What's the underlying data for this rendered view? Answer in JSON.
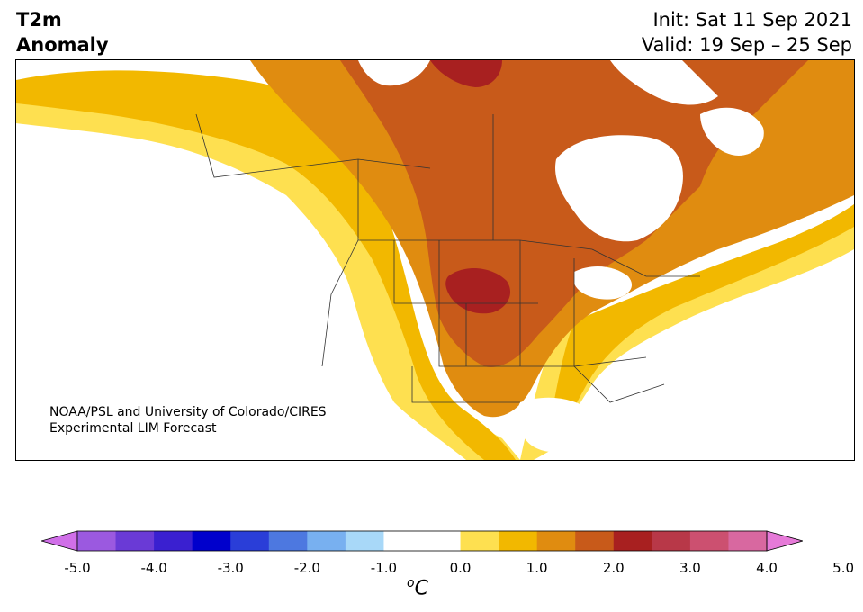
{
  "header": {
    "var_line1": "T2m",
    "var_line2": "Anomaly",
    "init": "Init: Sat 11 Sep 2021",
    "valid": "Valid: 19 Sep – 25 Sep"
  },
  "credit": {
    "line1": "NOAA/PSL and University of Colorado/CIRES",
    "line2": "Experimental LIM Forecast"
  },
  "colorbar": {
    "unit_base": "C",
    "unit_sup": "o",
    "ticks": [
      "-5.0",
      "-4.0",
      "-3.0",
      "-2.0",
      "-1.0",
      "0.0",
      "1.0",
      "2.0",
      "3.0",
      "4.0",
      "5.0"
    ],
    "colors": [
      "#d06fe8",
      "#9b59e0",
      "#6a3ad6",
      "#3a20d0",
      "#0000cc",
      "#2a3ed8",
      "#4d78e0",
      "#78b0f0",
      "#a8d8f8",
      "#ffffff",
      "#ffffff",
      "#fee050",
      "#f2b800",
      "#e08c10",
      "#c85a1a",
      "#a82020",
      "#b83848",
      "#cc5070",
      "#d868a0",
      "#e67ad8"
    ]
  },
  "map_colors": {
    "c1": "#fee050",
    "c15": "#f2b800",
    "c2": "#e08c10",
    "c25": "#c85a1a",
    "c3": "#a82020",
    "water": "#ffffff",
    "border": "#333333"
  }
}
